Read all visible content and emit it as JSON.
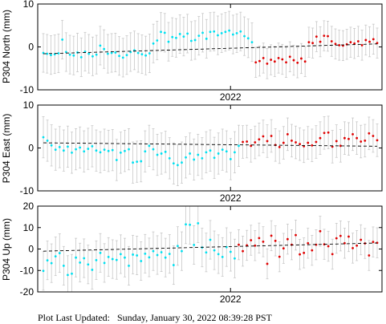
{
  "footer": {
    "label": "Plot Last Updated:",
    "timestamp": "Sunday, January 30, 2022 08:39:28 PST"
  },
  "colors": {
    "cyan": "#00e0f0",
    "red": "#e00000",
    "errorbar": "#c8c8c8",
    "trend": "#000000"
  },
  "chart_data": [
    {
      "type": "scatter",
      "ylabel": "P304 North (mm)",
      "x_tick_label": "2022",
      "x_tick_pos": 0.56,
      "ylim": [
        -10,
        10
      ],
      "yticks": [
        -10,
        0,
        10
      ],
      "trend": [
        -1.6,
        0.7
      ],
      "cyan_values": [
        -1.4,
        -1.6,
        -1.9,
        -1.7,
        -1.5,
        1.7,
        -1.2,
        -1.8,
        -2.0,
        -1.3,
        -2.4,
        -1.1,
        -1.6,
        -2.2,
        -1.8,
        0.3,
        -0.5,
        -1.6,
        -1.4,
        -1.3,
        -2.1,
        -2.5,
        -1.9,
        -1.2,
        -0.8,
        -1.4,
        -1.7,
        -2.0,
        -1.5,
        0.8,
        1.5,
        3.5,
        3.3,
        1.2,
        2.3,
        2.1,
        3.0,
        2.4,
        3.1,
        1.4,
        1.6,
        2.6,
        3.3,
        1.9,
        3.5,
        3.6,
        2.7,
        3.2,
        3.5,
        3.8,
        2.9,
        3.2,
        3.6,
        2.5,
        2.0,
        1.1
      ],
      "red_values": [
        -3.6,
        -3.3,
        -2.6,
        -3.9,
        -3.0,
        -3.4,
        -2.6,
        -2.9,
        -3.6,
        -2.3,
        -3.1,
        -3.7,
        -2.7,
        -3.4,
        1.1,
        0.9,
        2.4,
        1.2,
        2.6,
        2.5,
        1.3,
        0.7,
        0.4,
        0.3,
        0.6,
        1.1,
        0.8,
        1.3,
        0.4,
        1.6,
        1.2,
        1.8,
        0.9
      ],
      "errors": [
        4.5,
        3.5
      ]
    },
    {
      "type": "scatter",
      "ylabel": "P304 East (mm)",
      "x_tick_label": "2022",
      "x_tick_pos": 0.56,
      "ylim": [
        -10,
        10
      ],
      "yticks": [
        -10,
        0,
        10
      ],
      "trend": [
        1.2,
        0.4
      ],
      "cyan_values": [
        2.5,
        1.7,
        0.6,
        -0.4,
        0.2,
        -0.6,
        0.3,
        -1.1,
        -0.3,
        0.1,
        -0.8,
        -0.2,
        0.4,
        -0.6,
        -1.0,
        -0.4,
        -0.7,
        -0.5,
        -2.8,
        -1.1,
        -0.7,
        -0.3,
        -3.4,
        -3.2,
        -3.1,
        -0.8,
        0.5,
        -0.3,
        -1.6,
        -1.3,
        -0.9,
        -2.4,
        -3.6,
        -4.0,
        -3.4,
        -2.2,
        -1.3,
        -2.7,
        -1.6,
        -2.4,
        -1.0,
        -0.6,
        -2.3,
        -1.3,
        -0.4,
        -0.8,
        -2.6,
        -1.0,
        0.5
      ],
      "red_values": [
        1.4,
        1.5,
        0.5,
        1.3,
        2.0,
        2.7,
        1.6,
        2.8,
        0.7,
        0.2,
        1.2,
        3.2,
        1.7,
        1.3,
        0.9,
        0.4,
        1.2,
        0.6,
        1.4,
        2.3,
        3.5,
        3.6,
        0.3,
        1.6,
        0.5,
        2.3,
        2.1,
        3.2,
        2.3,
        1.5,
        1.7,
        3.4,
        2.8,
        1.8
      ],
      "errors": [
        4.8,
        3.8
      ]
    },
    {
      "type": "scatter",
      "ylabel": "P304 Up (mm)",
      "x_tick_label": "2022",
      "x_tick_pos": 0.56,
      "ylim": [
        -20,
        20
      ],
      "yticks": [
        -20,
        -10,
        0,
        10,
        20
      ],
      "trend": [
        -1.0,
        2.8
      ],
      "cyan_values": [
        -10.2,
        -5.3,
        -6.6,
        -3.4,
        -1.9,
        -7.8,
        -12.1,
        -11.5,
        -4.0,
        -6.3,
        -4.3,
        -7.2,
        -9.7,
        -5.2,
        -1.8,
        -6.5,
        -3.7,
        -4.7,
        -5.1,
        -2.4,
        -4.0,
        -7.8,
        -2.6,
        -3.0,
        -5.6,
        -2.2,
        -3.9,
        -1.0,
        -2.8,
        -1.5,
        -4.0,
        -2.3,
        -7.5,
        1.4,
        -1.0,
        11.5,
        11.3,
        1.9,
        12.0,
        0.7,
        -1.6,
        4.3,
        -0.6,
        -2.4,
        -3.7,
        0.9,
        -1.3,
        -4.4
      ],
      "red_values": [
        2.0,
        -1.0,
        1.7,
        4.1,
        1.6,
        5.1,
        3.4,
        -6.9,
        6.2,
        3.8,
        -3.6,
        0.3,
        4.6,
        2.0,
        6.5,
        -2.5,
        -1.8,
        2.7,
        -0.6,
        2.0,
        8.3,
        2.2,
        1.3,
        -2.4,
        5.0,
        6.1,
        2.7,
        5.8,
        0.4,
        1.6,
        4.3,
        2.6,
        -3.0,
        3.3,
        2.9
      ],
      "errors": [
        9.0,
        7.0
      ]
    }
  ]
}
